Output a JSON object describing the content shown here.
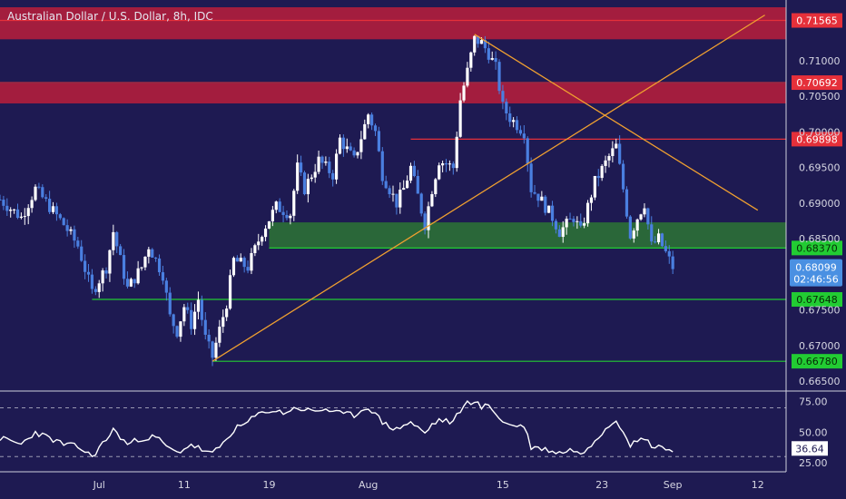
{
  "colors": {
    "background": "#1e1a52",
    "up": "#ffffff",
    "down": "#4a7fe0",
    "resistance_zone": "#c41e3a",
    "support_zone": "#2e7d32",
    "trendline": "#f0a030",
    "rsi": "#ffffff",
    "badge_red": "#e5303a",
    "badge_green": "#22cc33",
    "badge_blue": "#4a90e2"
  },
  "chart_data": {
    "type": "candlestick",
    "title": "Australian Dollar / U.S. Dollar, 8h, IDC",
    "ylim": [
      0.664,
      0.7175
    ],
    "y_ticks": [
      "0.71000",
      "0.70500",
      "0.70000",
      "0.69500",
      "0.69000",
      "0.68500",
      "0.68000",
      "0.67500",
      "0.67000",
      "0.66500"
    ],
    "x_ticks": [
      {
        "label": "Jul",
        "t": 14
      },
      {
        "label": "11",
        "t": 26
      },
      {
        "label": "19",
        "t": 38
      },
      {
        "label": "Aug",
        "t": 52
      },
      {
        "label": "15",
        "t": 71
      },
      {
        "label": "23",
        "t": 85
      },
      {
        "label": "Sep",
        "t": 95
      },
      {
        "label": "12",
        "t": 107
      }
    ],
    "t_range": [
      0,
      111
    ],
    "close_path": [
      [
        0,
        0.6905
      ],
      [
        3,
        0.688
      ],
      [
        5,
        0.692
      ],
      [
        7,
        0.6895
      ],
      [
        9,
        0.687
      ],
      [
        11,
        0.684
      ],
      [
        13,
        0.6775
      ],
      [
        15,
        0.681
      ],
      [
        16,
        0.686
      ],
      [
        17,
        0.682
      ],
      [
        18,
        0.678
      ],
      [
        20,
        0.681
      ],
      [
        21,
        0.684
      ],
      [
        23,
        0.68
      ],
      [
        24,
        0.674
      ],
      [
        25,
        0.672
      ],
      [
        26,
        0.6755
      ],
      [
        27,
        0.673
      ],
      [
        28,
        0.6765
      ],
      [
        29,
        0.671
      ],
      [
        30,
        0.6684
      ],
      [
        32,
        0.676
      ],
      [
        33,
        0.682
      ],
      [
        35,
        0.681
      ],
      [
        37,
        0.686
      ],
      [
        39,
        0.6895
      ],
      [
        41,
        0.6885
      ],
      [
        42,
        0.695
      ],
      [
        43,
        0.692
      ],
      [
        45,
        0.696
      ],
      [
        47,
        0.694
      ],
      [
        48,
        0.699
      ],
      [
        50,
        0.696
      ],
      [
        52,
        0.7025
      ],
      [
        53,
        0.7
      ],
      [
        54,
        0.694
      ],
      [
        56,
        0.69
      ],
      [
        57,
        0.692
      ],
      [
        58,
        0.695
      ],
      [
        60,
        0.687
      ],
      [
        61,
        0.692
      ],
      [
        62,
        0.696
      ],
      [
        64,
        0.695
      ],
      [
        65,
        0.7045
      ],
      [
        66,
        0.7085
      ],
      [
        67,
        0.713
      ],
      [
        68,
        0.7125
      ],
      [
        69,
        0.711
      ],
      [
        70,
        0.709
      ],
      [
        71,
        0.7035
      ],
      [
        72,
        0.702
      ],
      [
        74,
        0.7
      ],
      [
        75,
        0.692
      ],
      [
        76,
        0.691
      ],
      [
        78,
        0.688
      ],
      [
        79,
        0.686
      ],
      [
        81,
        0.688
      ],
      [
        82,
        0.686
      ],
      [
        84,
        0.693
      ],
      [
        86,
        0.6965
      ],
      [
        87,
        0.698
      ],
      [
        88,
        0.692
      ],
      [
        89,
        0.6855
      ],
      [
        90,
        0.688
      ],
      [
        91,
        0.69
      ],
      [
        92,
        0.684
      ],
      [
        93,
        0.685
      ],
      [
        94,
        0.683
      ],
      [
        95,
        0.681
      ]
    ],
    "zones": [
      {
        "from": 0.713,
        "to": 0.7175,
        "kind": "resistance"
      },
      {
        "from": 0.704,
        "to": 0.7068,
        "kind": "resistance"
      },
      {
        "from": 0.6837,
        "to": 0.6873,
        "kind": "support",
        "t_start": 38
      }
    ],
    "levels": [
      {
        "label": "0.71565",
        "value": 0.71565,
        "kind": "resistance",
        "t_start": 0
      },
      {
        "label": "0.70692",
        "value": 0.70692,
        "kind": "resistance",
        "t_start": 0
      },
      {
        "label": "0.69898",
        "value": 0.69898,
        "kind": "resistance",
        "t_start": 58
      },
      {
        "label": "0.68370",
        "value": 0.6837,
        "kind": "support",
        "t_start": 38
      },
      {
        "label": "0.67648",
        "value": 0.67648,
        "kind": "support",
        "t_start": 13
      },
      {
        "label": "0.66780",
        "value": 0.6678,
        "kind": "support",
        "t_start": 30
      }
    ],
    "trendlines": [
      {
        "from": [
          30,
          0.6678
        ],
        "to": [
          108,
          0.7164
        ]
      },
      {
        "from": [
          67,
          0.7137
        ],
        "to": [
          107,
          0.689
        ]
      }
    ],
    "last_price": {
      "label": "0.68099",
      "countdown": "02:46:56",
      "value": 0.68099
    },
    "rsi": {
      "ylim": [
        19,
        80
      ],
      "ticks": [
        "75.00",
        "50.00",
        "25.00"
      ],
      "current": "36.64",
      "levels": [
        70,
        30
      ],
      "path": [
        [
          0,
          45
        ],
        [
          3,
          40
        ],
        [
          5,
          50
        ],
        [
          7,
          45
        ],
        [
          9,
          40
        ],
        [
          11,
          38
        ],
        [
          13,
          30
        ],
        [
          15,
          44
        ],
        [
          16,
          52
        ],
        [
          18,
          40
        ],
        [
          20,
          45
        ],
        [
          22,
          46
        ],
        [
          24,
          36
        ],
        [
          25,
          33
        ],
        [
          27,
          40
        ],
        [
          29,
          34
        ],
        [
          30,
          32
        ],
        [
          32,
          44
        ],
        [
          33,
          52
        ],
        [
          35,
          58
        ],
        [
          36,
          63
        ],
        [
          38,
          68
        ],
        [
          40,
          66
        ],
        [
          42,
          70
        ],
        [
          44,
          67
        ],
        [
          46,
          69
        ],
        [
          48,
          65
        ],
        [
          50,
          64
        ],
        [
          52,
          71
        ],
        [
          54,
          58
        ],
        [
          56,
          52
        ],
        [
          57,
          56
        ],
        [
          58,
          58
        ],
        [
          60,
          49
        ],
        [
          61,
          56
        ],
        [
          62,
          60
        ],
        [
          64,
          58
        ],
        [
          65,
          68
        ],
        [
          66,
          74
        ],
        [
          67,
          76
        ],
        [
          68,
          70
        ],
        [
          69,
          72
        ],
        [
          70,
          66
        ],
        [
          71,
          58
        ],
        [
          72,
          56
        ],
        [
          74,
          55
        ],
        [
          75,
          38
        ],
        [
          77,
          36
        ],
        [
          79,
          33
        ],
        [
          81,
          36
        ],
        [
          82,
          31
        ],
        [
          84,
          44
        ],
        [
          86,
          56
        ],
        [
          87,
          60
        ],
        [
          88,
          52
        ],
        [
          89,
          40
        ],
        [
          90,
          42
        ],
        [
          91,
          46
        ],
        [
          92,
          38
        ],
        [
          93,
          40
        ],
        [
          94,
          36
        ],
        [
          95,
          34
        ]
      ]
    }
  }
}
